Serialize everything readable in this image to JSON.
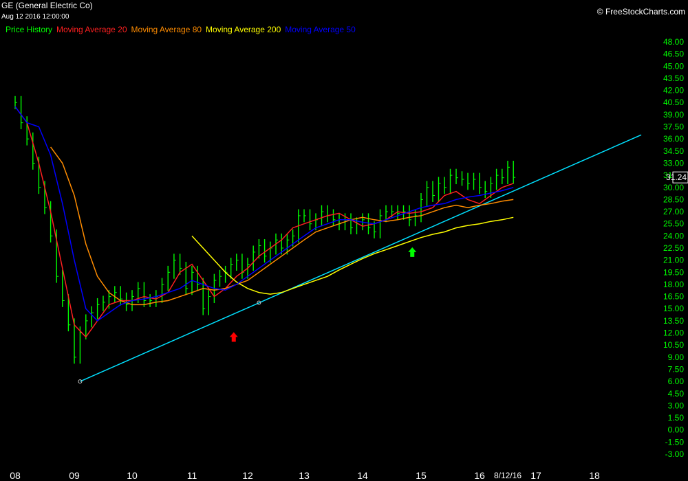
{
  "header": {
    "title": "GE (General Electric Co)",
    "date": "Aug 12 2016 12:00:00",
    "copyright": "© FreeStockCharts.com"
  },
  "chart_data": {
    "type": "line",
    "title": "GE (General Electric Co)",
    "ylim": [
      -3.0,
      48.0
    ],
    "y_ticks": [
      "48.00",
      "46.50",
      "45.00",
      "43.50",
      "42.00",
      "40.50",
      "39.00",
      "37.50",
      "36.00",
      "34.50",
      "33.00",
      "31.50",
      "30.00",
      "28.50",
      "27.00",
      "25.50",
      "24.00",
      "22.50",
      "21.00",
      "19.50",
      "18.00",
      "16.50",
      "15.00",
      "13.50",
      "12.00",
      "10.50",
      "9.00",
      "7.50",
      "6.00",
      "4.50",
      "3.00",
      "1.50",
      "0.00",
      "-1.50",
      "-3.00"
    ],
    "x_ticks": [
      "08",
      "09",
      "10",
      "11",
      "12",
      "13",
      "14",
      "15",
      "16",
      "17",
      "18"
    ],
    "x_date_label": "8/12/16",
    "last_price": "31.24",
    "grid": false,
    "legend_position": "top-left",
    "series": [
      {
        "name": "Price History",
        "color": "#00ff00",
        "x": [
          2008.0,
          2008.1,
          2008.2,
          2008.3,
          2008.4,
          2008.5,
          2008.6,
          2008.7,
          2008.8,
          2008.9,
          2009.0,
          2009.1,
          2009.2,
          2009.3,
          2009.4,
          2009.5,
          2009.6,
          2009.7,
          2009.8,
          2009.9,
          2010.0,
          2010.1,
          2010.2,
          2010.3,
          2010.4,
          2010.5,
          2010.6,
          2010.7,
          2010.8,
          2010.9,
          2011.0,
          2011.1,
          2011.2,
          2011.3,
          2011.4,
          2011.5,
          2011.6,
          2011.7,
          2011.8,
          2011.9,
          2012.0,
          2012.1,
          2012.2,
          2012.3,
          2012.4,
          2012.5,
          2012.6,
          2012.7,
          2012.8,
          2012.9,
          2013.0,
          2013.1,
          2013.2,
          2013.3,
          2013.4,
          2013.5,
          2013.6,
          2013.7,
          2013.8,
          2013.9,
          2014.0,
          2014.1,
          2014.2,
          2014.3,
          2014.4,
          2014.5,
          2014.6,
          2014.7,
          2014.8,
          2014.9,
          2015.0,
          2015.1,
          2015.2,
          2015.3,
          2015.4,
          2015.5,
          2015.6,
          2015.7,
          2015.8,
          2015.9,
          2016.0,
          2016.1,
          2016.2,
          2016.3,
          2016.4,
          2016.5,
          2016.6
        ],
        "values": [
          40.5,
          38.0,
          36.0,
          33.0,
          30.0,
          27.5,
          24.0,
          19.0,
          16.0,
          13.0,
          9.0,
          12.0,
          13.5,
          14.5,
          15.5,
          15.8,
          16.5,
          17.0,
          16.2,
          15.5,
          16.5,
          17.5,
          16.0,
          16.0,
          16.5,
          18.0,
          19.5,
          21.0,
          20.0,
          17.5,
          19.5,
          18.0,
          15.0,
          16.5,
          18.5,
          19.0,
          19.5,
          20.5,
          21.0,
          19.5,
          20.5,
          22.0,
          22.8,
          21.5,
          22.5,
          23.5,
          22.5,
          23.5,
          24.0,
          26.5,
          26.5,
          25.5,
          26.0,
          27.0,
          26.5,
          26.0,
          25.5,
          26.0,
          25.0,
          25.5,
          26.0,
          25.0,
          24.5,
          26.5,
          27.0,
          27.0,
          26.8,
          27.0,
          26.0,
          26.5,
          28.5,
          30.0,
          29.0,
          30.5,
          30.0,
          31.5,
          31.2,
          31.0,
          30.5,
          31.0,
          30.0,
          29.5,
          30.5,
          31.5,
          31.2,
          32.5,
          31.24
        ]
      },
      {
        "name": "Moving Average 20",
        "color": "#ff2020",
        "x": [
          2008.0,
          2008.2,
          2008.4,
          2008.6,
          2008.8,
          2009.0,
          2009.2,
          2009.4,
          2009.6,
          2009.8,
          2010.0,
          2010.2,
          2010.4,
          2010.6,
          2010.8,
          2011.0,
          2011.2,
          2011.4,
          2011.6,
          2011.8,
          2012.0,
          2012.2,
          2012.4,
          2012.6,
          2012.8,
          2013.0,
          2013.2,
          2013.4,
          2013.6,
          2013.8,
          2014.0,
          2014.2,
          2014.4,
          2014.6,
          2014.8,
          2015.0,
          2015.2,
          2015.4,
          2015.6,
          2015.8,
          2016.0,
          2016.2,
          2016.4,
          2016.6
        ],
        "values": [
          40.0,
          38.0,
          33.0,
          27.0,
          20.0,
          13.0,
          11.5,
          13.5,
          15.5,
          16.0,
          16.0,
          16.5,
          16.2,
          17.0,
          19.5,
          20.5,
          18.5,
          16.5,
          17.5,
          19.0,
          20.0,
          21.5,
          22.5,
          23.5,
          25.0,
          25.5,
          26.0,
          26.5,
          26.8,
          26.0,
          25.2,
          25.5,
          26.0,
          27.0,
          26.8,
          27.0,
          27.5,
          29.0,
          29.5,
          28.5,
          28.0,
          29.0,
          30.0,
          30.5
        ]
      },
      {
        "name": "Moving Average 80",
        "color": "#ff8c00",
        "x": [
          2008.6,
          2008.8,
          2009.0,
          2009.2,
          2009.4,
          2009.6,
          2009.8,
          2010.0,
          2010.2,
          2010.4,
          2010.6,
          2010.8,
          2011.0,
          2011.2,
          2011.4,
          2011.6,
          2011.8,
          2012.0,
          2012.2,
          2012.4,
          2012.6,
          2012.8,
          2013.0,
          2013.2,
          2013.4,
          2013.6,
          2013.8,
          2014.0,
          2014.2,
          2014.4,
          2014.6,
          2014.8,
          2015.0,
          2015.2,
          2015.4,
          2015.6,
          2015.8,
          2016.0,
          2016.2,
          2016.4,
          2016.6
        ],
        "values": [
          35.0,
          33.0,
          29.0,
          23.0,
          19.0,
          17.0,
          16.0,
          15.5,
          15.5,
          15.8,
          16.0,
          16.5,
          17.0,
          17.5,
          17.3,
          17.5,
          18.0,
          18.5,
          19.5,
          20.5,
          21.5,
          22.5,
          23.5,
          24.5,
          25.0,
          25.5,
          26.0,
          26.3,
          26.0,
          25.8,
          26.0,
          26.3,
          26.5,
          27.0,
          27.5,
          27.8,
          27.5,
          27.8,
          28.0,
          28.3,
          28.5
        ]
      },
      {
        "name": "Moving Average 200",
        "color": "#ffff00",
        "x": [
          2011.0,
          2011.2,
          2011.4,
          2011.6,
          2011.8,
          2012.0,
          2012.2,
          2012.4,
          2012.6,
          2012.8,
          2013.0,
          2013.2,
          2013.4,
          2013.6,
          2013.8,
          2014.0,
          2014.2,
          2014.4,
          2014.6,
          2014.8,
          2015.0,
          2015.2,
          2015.4,
          2015.6,
          2015.8,
          2016.0,
          2016.2,
          2016.4,
          2016.6
        ],
        "values": [
          24.0,
          22.5,
          21.0,
          19.5,
          18.3,
          17.5,
          17.0,
          16.8,
          17.0,
          17.5,
          18.0,
          18.5,
          19.0,
          19.8,
          20.5,
          21.2,
          21.8,
          22.3,
          22.8,
          23.3,
          23.8,
          24.2,
          24.5,
          25.0,
          25.3,
          25.5,
          25.8,
          26.0,
          26.3
        ]
      },
      {
        "name": "Moving Average 50",
        "color": "#0000ff",
        "x": [
          2008.0,
          2008.2,
          2008.4,
          2008.6,
          2008.8,
          2009.0,
          2009.2,
          2009.4,
          2009.6,
          2009.8,
          2010.0,
          2010.2,
          2010.4,
          2010.6,
          2010.8,
          2011.0,
          2011.2,
          2011.4,
          2011.6,
          2011.8,
          2012.0,
          2012.2,
          2012.4,
          2012.6,
          2012.8,
          2013.0,
          2013.2,
          2013.4,
          2013.6,
          2013.8,
          2014.0,
          2014.2,
          2014.4,
          2014.6,
          2014.8,
          2015.0,
          2015.2,
          2015.4,
          2015.6,
          2015.8,
          2016.0,
          2016.2,
          2016.4,
          2016.6
        ],
        "values": [
          40.0,
          38.0,
          37.5,
          34.0,
          28.0,
          21.0,
          15.0,
          13.5,
          14.5,
          15.5,
          16.0,
          16.2,
          16.5,
          17.0,
          17.5,
          18.5,
          18.0,
          17.5,
          17.3,
          18.0,
          19.0,
          20.0,
          21.0,
          22.0,
          23.0,
          24.0,
          25.0,
          25.5,
          26.0,
          26.0,
          25.7,
          25.5,
          26.0,
          26.5,
          27.0,
          27.5,
          27.8,
          28.0,
          28.5,
          28.8,
          29.0,
          29.3,
          29.6,
          30.0
        ]
      }
    ],
    "annotations": [
      {
        "type": "trendline",
        "color": "#00e0ff",
        "x": [
          2009.1,
          2018.8
        ],
        "values": [
          6.0,
          36.5
        ]
      },
      {
        "type": "arrow-up",
        "color": "#ff0000",
        "x": 2011.75,
        "value": 11.5
      },
      {
        "type": "arrow-up",
        "color": "#00ff00",
        "x": 2014.85,
        "value": 22.0
      }
    ]
  }
}
